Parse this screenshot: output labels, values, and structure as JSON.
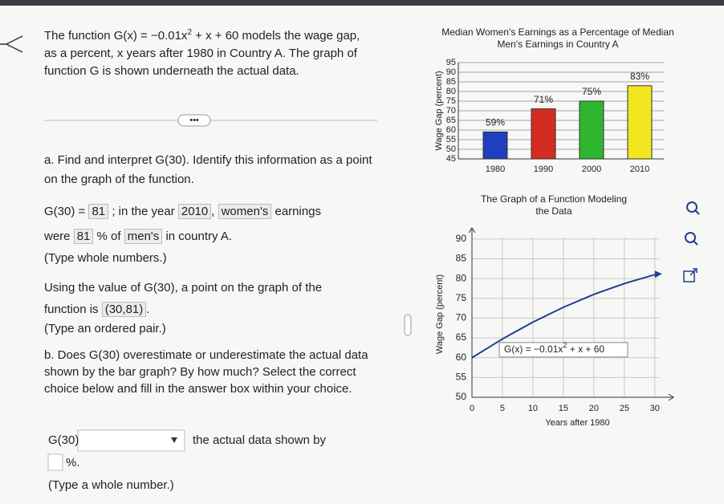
{
  "problem": {
    "intro": {
      "before": "The function ",
      "formula": "G(x) = −0.01x",
      "exponent": "2",
      "formula_rest": " + x + 60",
      "after": " models the wage gap, as a percent, x years after 1980 in Country A. The graph of function G is shown underneath the actual data."
    },
    "part_a": {
      "prompt": "a. Find and interpret G(30). Identify this information as a point on the graph of the function.",
      "answer": [
        "G(30) =",
        "81",
        "; in the year",
        "2010",
        ",",
        "women's",
        "earnings",
        "were",
        "81",
        "% of",
        "men's",
        "in country A."
      ],
      "hint_1": "(Type whole numbers.)",
      "point_text": "Using the value of G(30), a point on the graph of the function is",
      "point": "(30,81)",
      "point_end": ".",
      "hint_2": "(Type an ordered pair.)"
    },
    "part_b": {
      "prompt": "b. Does G(30) overestimate or underestimate the actual data shown by the bar graph? By how much? Select the correct choice below and fill in the answer box within your choice.",
      "answer": [
        "G(30)",
        "the actual data shown by",
        "%."
      ],
      "hint": "(Type a whole number.)"
    }
  },
  "chart_data": [
    {
      "type": "bar",
      "title": "Median Women's Earnings as a Percentage of Median Men's Earnings in Country A",
      "ylabel": "Wage Gap (percent)",
      "categories": [
        "1980",
        "1990",
        "2000",
        "2010"
      ],
      "values": [
        59,
        71,
        75,
        83
      ],
      "value_labels": [
        "59%",
        "71%",
        "75%",
        "83%"
      ],
      "colors": [
        "#1f3fbf",
        "#d42b22",
        "#2fb52f",
        "#f2e621"
      ],
      "ylim": [
        45,
        95
      ],
      "yticks": [
        45,
        50,
        55,
        60,
        65,
        70,
        75,
        80,
        85,
        90,
        95
      ],
      "grid": true
    },
    {
      "type": "line",
      "title": "The Graph of a Function Modeling the Data",
      "xlabel": "Years after 1980",
      "ylabel": "Wage Gap (percent)",
      "x": [
        0,
        5,
        10,
        15,
        20,
        25,
        30
      ],
      "values": [
        60,
        64.75,
        69,
        72.75,
        76,
        78.75,
        81
      ],
      "color": "#1e3f8f",
      "annotation": {
        "formula": "G(x) = −0.01x",
        "exponent": "2",
        "formula_rest": " + x + 60"
      },
      "xlim": [
        0,
        32
      ],
      "xticks": [
        0,
        5,
        10,
        15,
        20,
        25,
        30
      ],
      "ylim": [
        50,
        92
      ],
      "yticks": [
        50,
        55,
        60,
        65,
        70,
        75,
        80,
        85,
        90
      ],
      "grid": true
    }
  ]
}
